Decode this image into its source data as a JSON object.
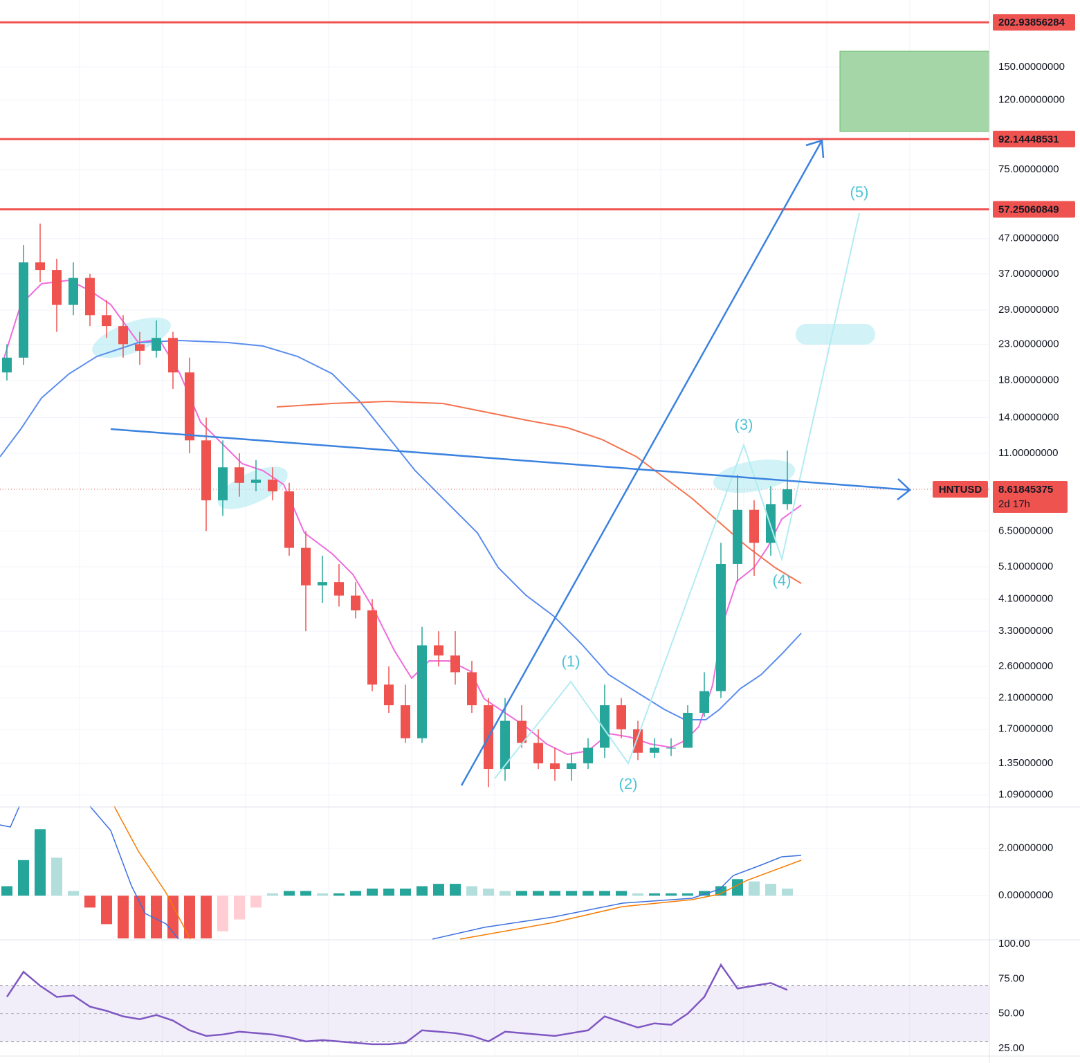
{
  "chart_data": {
    "type": "candlestick",
    "log_scale": true,
    "grid": true,
    "up_color": "#26a69a",
    "down_color": "#ef5350",
    "level_color": "#ef5350",
    "ylim": [
      1.01,
      236
    ],
    "yticks": [
      {
        "value": 150,
        "label": "150.00000000"
      },
      {
        "value": 120,
        "label": "120.00000000"
      },
      {
        "value": 75,
        "label": "75.00000000"
      },
      {
        "value": 47,
        "label": "47.00000000"
      },
      {
        "value": 37,
        "label": "37.00000000"
      },
      {
        "value": 29,
        "label": "29.00000000"
      },
      {
        "value": 23,
        "label": "23.00000000"
      },
      {
        "value": 18,
        "label": "18.00000000"
      },
      {
        "value": 14,
        "label": "14.00000000"
      },
      {
        "value": 11,
        "label": "11.00000000"
      },
      {
        "value": 6.5,
        "label": "6.50000000"
      },
      {
        "value": 5.1,
        "label": "5.10000000"
      },
      {
        "value": 4.1,
        "label": "4.10000000"
      },
      {
        "value": 3.3,
        "label": "3.30000000"
      },
      {
        "value": 2.6,
        "label": "2.60000000"
      },
      {
        "value": 2.1,
        "label": "2.10000000"
      },
      {
        "value": 1.7,
        "label": "1.70000000"
      },
      {
        "value": 1.35,
        "label": "1.35000000"
      },
      {
        "value": 1.09,
        "label": "1.09000000"
      }
    ],
    "levels": [
      202.93856284,
      92.14448531,
      57.25060849
    ],
    "symbol": "HNTUSD",
    "last_price": 8.61845375,
    "countdown": "2d 17h",
    "wave_labels": [
      "(1)",
      "(2)",
      "(3)",
      "(4)",
      "(5)"
    ],
    "open": [
      19,
      21,
      40,
      38,
      30,
      36,
      28,
      26,
      23,
      22,
      24,
      19,
      12,
      8,
      10,
      9,
      9.2,
      8.5,
      5.8,
      4.5,
      4.6,
      4.2,
      3.8,
      2.3,
      2.0,
      1.6,
      3.0,
      2.8,
      2.5,
      2.0,
      1.3,
      1.8,
      1.55,
      1.35,
      1.3,
      1.35,
      1.5,
      2.0,
      1.7,
      1.45,
      1.5,
      1.5,
      1.9,
      2.2,
      5.2,
      7.5,
      6.0,
      7.8
    ],
    "high": [
      23,
      45,
      52,
      41,
      40,
      37,
      31,
      28,
      25,
      27,
      25,
      21,
      14,
      12,
      11,
      10.5,
      10,
      9,
      6.5,
      5.5,
      5.2,
      4.6,
      4.1,
      2.6,
      2.3,
      3.4,
      3.3,
      3.3,
      2.7,
      2.1,
      2.1,
      2.0,
      1.7,
      1.5,
      1.45,
      1.6,
      2.3,
      2.1,
      1.8,
      1.6,
      1.6,
      2.0,
      2.5,
      6.0,
      9.5,
      8.0,
      8.8,
      11.2
    ],
    "low": [
      18,
      20,
      35,
      25,
      28,
      26,
      24,
      21,
      20,
      21,
      17,
      11,
      6.5,
      7.2,
      8.2,
      8.5,
      8.0,
      5.5,
      3.3,
      4.0,
      3.9,
      3.6,
      2.2,
      1.9,
      1.55,
      1.55,
      2.6,
      2.3,
      1.9,
      1.15,
      1.2,
      1.5,
      1.3,
      1.2,
      1.2,
      1.3,
      1.4,
      1.6,
      1.38,
      1.4,
      1.42,
      1.5,
      1.85,
      2.1,
      4.6,
      4.8,
      5.5,
      7.5
    ],
    "close": [
      21,
      40,
      38,
      30,
      36,
      28,
      26,
      23,
      22,
      24,
      19,
      12,
      8,
      10,
      9,
      9.2,
      8.5,
      5.8,
      4.5,
      4.6,
      4.2,
      3.8,
      2.3,
      2.0,
      1.6,
      3.0,
      2.8,
      2.5,
      2.0,
      1.3,
      1.8,
      1.55,
      1.35,
      1.3,
      1.35,
      1.5,
      2.0,
      1.7,
      1.45,
      1.5,
      1.5,
      1.9,
      2.2,
      5.2,
      7.5,
      6.0,
      7.8,
      8.62
    ],
    "macd": {
      "ylim": [
        -1.83,
        3.74
      ],
      "yticks": [
        {
          "value": 2,
          "label": "2.00000000"
        },
        {
          "value": 0,
          "label": "0.00000000"
        }
      ],
      "histogram": [
        0.4,
        1.5,
        2.8,
        1.6,
        0.2,
        -0.5,
        -1.2,
        -1.8,
        -1.8,
        -1.8,
        -1.8,
        -1.8,
        -1.8,
        -1.5,
        -1.0,
        -0.5,
        0.1,
        0.2,
        0.2,
        0.1,
        0.1,
        0.2,
        0.3,
        0.3,
        0.3,
        0.4,
        0.5,
        0.5,
        0.4,
        0.3,
        0.2,
        0.2,
        0.2,
        0.2,
        0.2,
        0.2,
        0.2,
        0.2,
        0.1,
        0.1,
        0.1,
        0.1,
        0.2,
        0.4,
        0.7,
        0.6,
        0.5,
        0.3
      ]
    },
    "rsi": {
      "ylim": [
        20,
        103
      ],
      "yticks": [
        {
          "value": 100,
          "label": "100.00"
        },
        {
          "value": 75,
          "label": "75.00"
        },
        {
          "value": 50,
          "label": "50.00"
        },
        {
          "value": 25,
          "label": "25.00"
        }
      ],
      "band": [
        30,
        70
      ],
      "color": "#7e57c2",
      "values": [
        62,
        80,
        70,
        62,
        63,
        55,
        52,
        48,
        46,
        49,
        45,
        38,
        34,
        35,
        37,
        36,
        35,
        33,
        30,
        31,
        30,
        29,
        28,
        28,
        29,
        38,
        37,
        36,
        34,
        30,
        37,
        36,
        35,
        34,
        36,
        38,
        48,
        44,
        40,
        43,
        42,
        50,
        62,
        85,
        68,
        70,
        72,
        67
      ]
    }
  }
}
